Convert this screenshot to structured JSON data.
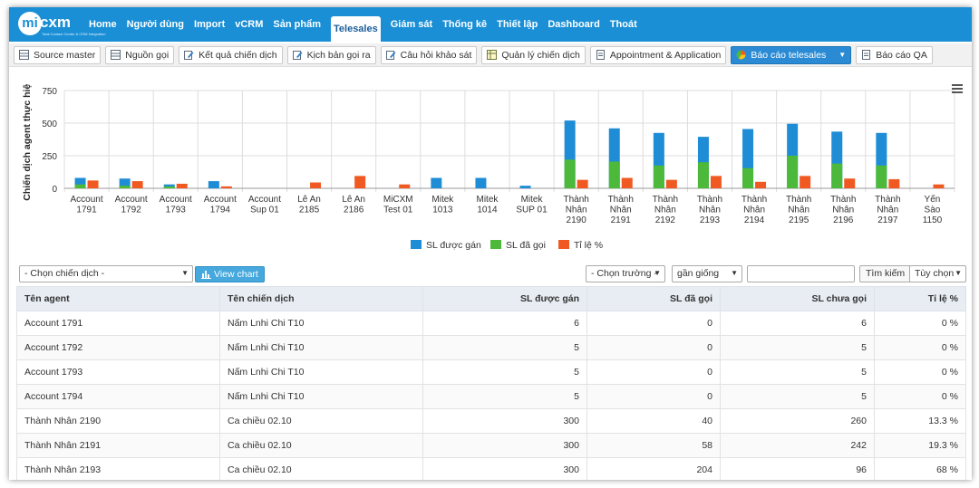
{
  "logo": {
    "text": "mi",
    "word": "cxm",
    "tagline": "Total Contact Center & CRM Integration"
  },
  "nav": {
    "items": [
      "Home",
      "Người dùng",
      "Import",
      "vCRM",
      "Sản phẩm",
      "Telesales",
      "Giám sát",
      "Thống kê",
      "Thiết lập",
      "Dashboard",
      "Thoát"
    ],
    "active_index": 5
  },
  "toolbar": {
    "items": [
      {
        "label": "Source master",
        "icon": "table-icon"
      },
      {
        "label": "Nguồn gọi",
        "icon": "table-icon"
      },
      {
        "label": "Kết quả chiến dịch",
        "icon": "edit-icon"
      },
      {
        "label": "Kịch bản gọi ra",
        "icon": "edit-icon"
      },
      {
        "label": "Câu hỏi khảo sát",
        "icon": "edit-icon"
      },
      {
        "label": "Quản lý chiến dịch",
        "icon": "grid-icon"
      },
      {
        "label": "Appointment & Application",
        "icon": "doc-icon"
      },
      {
        "label": "Báo cáo telesales",
        "icon": "pie-icon",
        "active": true
      },
      {
        "label": "Báo cáo QA",
        "icon": "doc-icon"
      }
    ]
  },
  "chart_data": {
    "type": "bar",
    "ylabel": "Chiến dịch agent thực hiện",
    "ylim": [
      0,
      750
    ],
    "yticks": [
      0,
      250,
      500,
      750
    ],
    "categories": [
      "Account 1791",
      "Account 1792",
      "Account 1793",
      "Account 1794",
      "Account Sup 01",
      "Lê An 2185",
      "Lê An 2186",
      "MiCXM Test 01",
      "Mitek 1013",
      "Mitek 1014",
      "Mitek SUP 01",
      "Thành Nhân 2190",
      "Thành Nhân 2191",
      "Thành Nhân 2192",
      "Thành Nhân 2193",
      "Thành Nhân 2194",
      "Thành Nhân 2195",
      "Thành Nhân 2196",
      "Thành Nhân 2197",
      "Yến Sào 1150"
    ],
    "category_lines": [
      [
        "Account",
        "1791"
      ],
      [
        "Account",
        "1792"
      ],
      [
        "Account",
        "1793"
      ],
      [
        "Account",
        "1794"
      ],
      [
        "Account",
        "Sup 01"
      ],
      [
        "Lê An",
        "2185"
      ],
      [
        "Lê An",
        "2186"
      ],
      [
        "MiCXM",
        "Test 01"
      ],
      [
        "Mitek",
        "1013"
      ],
      [
        "Mitek",
        "1014"
      ],
      [
        "Mitek",
        "SUP 01"
      ],
      [
        "Thành",
        "Nhân",
        "2190"
      ],
      [
        "Thành",
        "Nhân",
        "2191"
      ],
      [
        "Thành",
        "Nhân",
        "2192"
      ],
      [
        "Thành",
        "Nhân",
        "2193"
      ],
      [
        "Thành",
        "Nhân",
        "2194"
      ],
      [
        "Thành",
        "Nhân",
        "2195"
      ],
      [
        "Thành",
        "Nhân",
        "2196"
      ],
      [
        "Thành",
        "Nhân",
        "2197"
      ],
      [
        "Yến",
        "Sào",
        "1150"
      ]
    ],
    "series": [
      {
        "name": "SL được gán",
        "color": "#1f8dd6",
        "values": [
          80,
          75,
          30,
          55,
          0,
          0,
          0,
          0,
          80,
          80,
          20,
          520,
          460,
          425,
          395,
          455,
          495,
          435,
          425,
          0
        ]
      },
      {
        "name": "SL đã gọi",
        "color": "#4cb93b",
        "values": [
          30,
          20,
          15,
          0,
          0,
          0,
          0,
          0,
          0,
          0,
          0,
          220,
          205,
          175,
          200,
          155,
          250,
          190,
          175,
          0
        ]
      },
      {
        "name": "Tỉ lệ %",
        "color": "#f05a22",
        "values": [
          60,
          55,
          35,
          15,
          0,
          45,
          95,
          30,
          0,
          0,
          0,
          65,
          80,
          65,
          95,
          50,
          95,
          75,
          70,
          30
        ]
      }
    ],
    "stacked_series": [
      0,
      1
    ],
    "legend_position": "bottom",
    "grid": true
  },
  "filters": {
    "campaign_placeholder": "- Chọn chiến dịch -",
    "view_chart": "View chart",
    "field_placeholder": "- Chọn trường -",
    "match": "gần giống",
    "search_value": "",
    "search_button": "Tìm kiếm",
    "options_button": "Tùy chọn"
  },
  "table": {
    "headers": [
      "Tên agent",
      "Tên chiến dịch",
      "SL được gán",
      "SL đã gọi",
      "SL chưa gọi",
      "Tỉ lệ %"
    ],
    "rows": [
      [
        "Account 1791",
        "Nấm Lnhi Chi T10",
        "6",
        "0",
        "6",
        "0 %"
      ],
      [
        "Account 1792",
        "Nấm Lnhi Chi T10",
        "5",
        "0",
        "5",
        "0 %"
      ],
      [
        "Account 1793",
        "Nấm Lnhi Chi T10",
        "5",
        "0",
        "5",
        "0 %"
      ],
      [
        "Account 1794",
        "Nấm Lnhi Chi T10",
        "5",
        "0",
        "5",
        "0 %"
      ],
      [
        "Thành Nhân 2190",
        "Ca chiều 02.10",
        "300",
        "40",
        "260",
        "13.3 %"
      ],
      [
        "Thành Nhân 2191",
        "Ca chiều 02.10",
        "300",
        "58",
        "242",
        "19.3 %"
      ],
      [
        "Thành Nhân 2193",
        "Ca chiều 02.10",
        "300",
        "204",
        "96",
        "68 %"
      ]
    ]
  }
}
